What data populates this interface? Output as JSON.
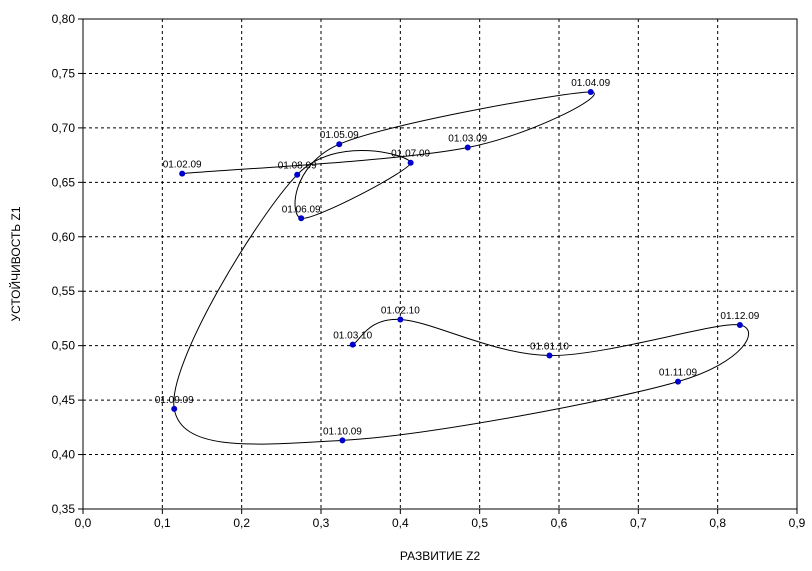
{
  "chart_data": {
    "type": "line",
    "xlabel": "РАЗВИТИЕ Z2",
    "ylabel": "УСТОЙЧИВОСТЬ Z1",
    "xlim": [
      0,
      0.9
    ],
    "ylim": [
      0.35,
      0.8
    ],
    "x_ticks": [
      0,
      0.1,
      0.2,
      0.3,
      0.4,
      0.5,
      0.6,
      0.7,
      0.8,
      0.9
    ],
    "x_tick_labels": [
      "0,0",
      "0,1",
      "0,2",
      "0,3",
      "0,4",
      "0,5",
      "0,6",
      "0,7",
      "0,8",
      "0,9"
    ],
    "y_ticks": [
      0.35,
      0.4,
      0.45,
      0.5,
      0.55,
      0.6,
      0.65,
      0.7,
      0.75,
      0.8
    ],
    "y_tick_labels": [
      "0,35",
      "0,40",
      "0,45",
      "0,50",
      "0,55",
      "0,60",
      "0,65",
      "0,70",
      "0,75",
      "0,80"
    ],
    "grid": true,
    "grid_style": "dashed",
    "marker_color": "#0000cc",
    "line_color": "#000000",
    "points": [
      {
        "label": "01.02.09",
        "x": 0.125,
        "y": 0.658
      },
      {
        "label": "01.03.09",
        "x": 0.485,
        "y": 0.682
      },
      {
        "label": "01.04.09",
        "x": 0.64,
        "y": 0.733
      },
      {
        "label": "01.05.09",
        "x": 0.323,
        "y": 0.685
      },
      {
        "label": "01.06.09",
        "x": 0.275,
        "y": 0.617
      },
      {
        "label": "01.07.09",
        "x": 0.413,
        "y": 0.668
      },
      {
        "label": "01.08.09",
        "x": 0.27,
        "y": 0.657
      },
      {
        "label": "01.09.09",
        "x": 0.115,
        "y": 0.442
      },
      {
        "label": "01.10.09",
        "x": 0.327,
        "y": 0.413
      },
      {
        "label": "01.11.09",
        "x": 0.75,
        "y": 0.467
      },
      {
        "label": "01.12.09",
        "x": 0.828,
        "y": 0.519
      },
      {
        "label": "01.01.10",
        "x": 0.588,
        "y": 0.491
      },
      {
        "label": "01.02.10",
        "x": 0.4,
        "y": 0.524
      },
      {
        "label": "01.03.10",
        "x": 0.34,
        "y": 0.501
      }
    ]
  }
}
